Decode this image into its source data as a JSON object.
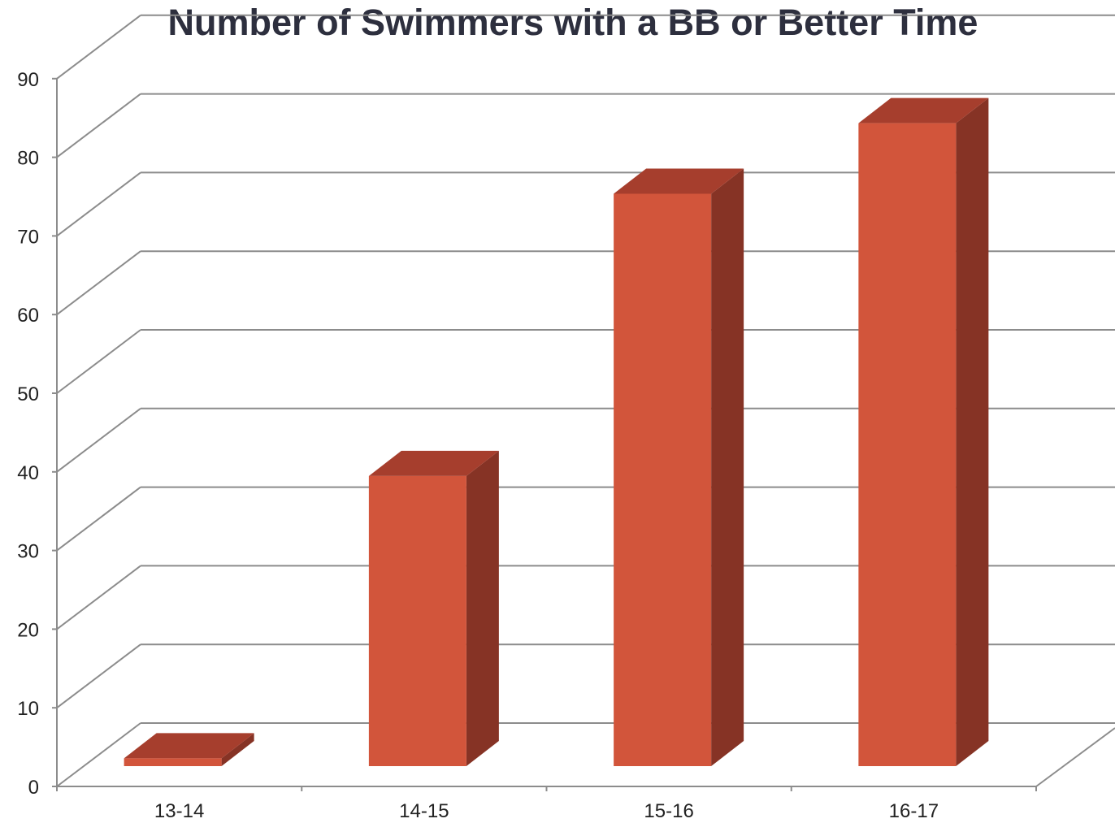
{
  "chart_data": {
    "type": "bar",
    "title": "Number of Swimmers with a BB or Better Time",
    "categories": [
      "13-14",
      "14-15",
      "15-16",
      "16-17"
    ],
    "values": [
      1,
      37,
      73,
      82
    ],
    "ylim": [
      0,
      90
    ],
    "yticks": [
      0,
      10,
      20,
      30,
      40,
      50,
      60,
      70,
      80,
      90
    ],
    "xlabel": "",
    "ylabel": "",
    "grid": true,
    "style": "3d-column",
    "colors": {
      "front": "#d2553b",
      "top": "#a63e2d",
      "side": "#863325",
      "grid": "#8c8c8c",
      "title": "#2d2f3e"
    }
  }
}
